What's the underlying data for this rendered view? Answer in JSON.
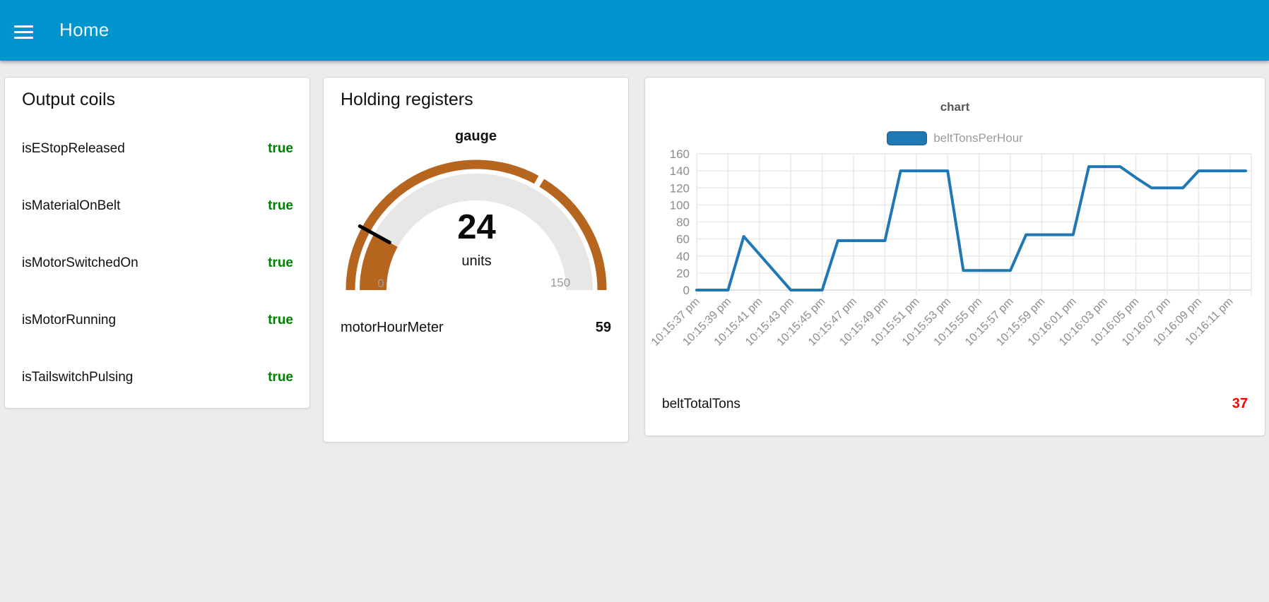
{
  "header": {
    "title": "Home"
  },
  "output_coils": {
    "title": "Output coils",
    "value_color": "#008000",
    "rows": [
      {
        "label": "isEStopReleased",
        "value": "true"
      },
      {
        "label": "isMaterialOnBelt",
        "value": "true"
      },
      {
        "label": "isMotorSwitchedOn",
        "value": "true"
      },
      {
        "label": "isMotorRunning",
        "value": "true"
      },
      {
        "label": "isTailswitchPulsing",
        "value": "true"
      }
    ]
  },
  "holding_registers": {
    "title": "Holding registers",
    "gauge": {
      "label": "gauge",
      "value": 24,
      "units": "units",
      "min": 0,
      "max": 150,
      "segment_marker": 100,
      "arc_color": "#b5651d",
      "track_color": "#e7e7e7",
      "needle_color": "#000000"
    },
    "rows": [
      {
        "label": "motorHourMeter",
        "value": "59"
      }
    ]
  },
  "chart_card": {
    "belt_total": {
      "label": "beltTotalTons",
      "value": "37",
      "value_color": "#ff0000"
    }
  },
  "chart_data": {
    "type": "line",
    "title": "chart",
    "xlabel": "",
    "ylabel": "",
    "ylim": [
      0,
      160
    ],
    "ytick_step": 20,
    "grid": true,
    "legend_position": "top",
    "x_domain_seconds": [
      37,
      72
    ],
    "x_ticks": [
      {
        "t": 37,
        "label": "10:15:37 pm"
      },
      {
        "t": 39,
        "label": "10:15:39 pm"
      },
      {
        "t": 41,
        "label": "10:15:41 pm"
      },
      {
        "t": 43,
        "label": "10:15:43 pm"
      },
      {
        "t": 45,
        "label": "10:15:45 pm"
      },
      {
        "t": 47,
        "label": "10:15:47 pm"
      },
      {
        "t": 49,
        "label": "10:15:49 pm"
      },
      {
        "t": 51,
        "label": "10:15:51 pm"
      },
      {
        "t": 53,
        "label": "10:15:53 pm"
      },
      {
        "t": 55,
        "label": "10:15:55 pm"
      },
      {
        "t": 57,
        "label": "10:15:57 pm"
      },
      {
        "t": 59,
        "label": "10:15:59 pm"
      },
      {
        "t": 61,
        "label": "10:16:01 pm"
      },
      {
        "t": 63,
        "label": "10:16:03 pm"
      },
      {
        "t": 65,
        "label": "10:16:05 pm"
      },
      {
        "t": 67,
        "label": "10:16:07 pm"
      },
      {
        "t": 69,
        "label": "10:16:09 pm"
      },
      {
        "t": 71,
        "label": "10:16:11 pm"
      }
    ],
    "series": [
      {
        "name": "beltTonsPerHour",
        "color": "#1f77b4",
        "points": [
          [
            37,
            0
          ],
          [
            38,
            0
          ],
          [
            39,
            0
          ],
          [
            40,
            63
          ],
          [
            41,
            42
          ],
          [
            42,
            21
          ],
          [
            43,
            0
          ],
          [
            44,
            0
          ],
          [
            45,
            0
          ],
          [
            46,
            58
          ],
          [
            47,
            58
          ],
          [
            48,
            58
          ],
          [
            49,
            58
          ],
          [
            50,
            140
          ],
          [
            51,
            140
          ],
          [
            52,
            140
          ],
          [
            53,
            140
          ],
          [
            54,
            23
          ],
          [
            55,
            23
          ],
          [
            56,
            23
          ],
          [
            57,
            23
          ],
          [
            58,
            65
          ],
          [
            59,
            65
          ],
          [
            60,
            65
          ],
          [
            61,
            65
          ],
          [
            62,
            145
          ],
          [
            63,
            145
          ],
          [
            64,
            145
          ],
          [
            65,
            132
          ],
          [
            66,
            120
          ],
          [
            67,
            120
          ],
          [
            68,
            120
          ],
          [
            69,
            140
          ],
          [
            70,
            140
          ],
          [
            71,
            140
          ],
          [
            72,
            140
          ]
        ]
      }
    ]
  }
}
